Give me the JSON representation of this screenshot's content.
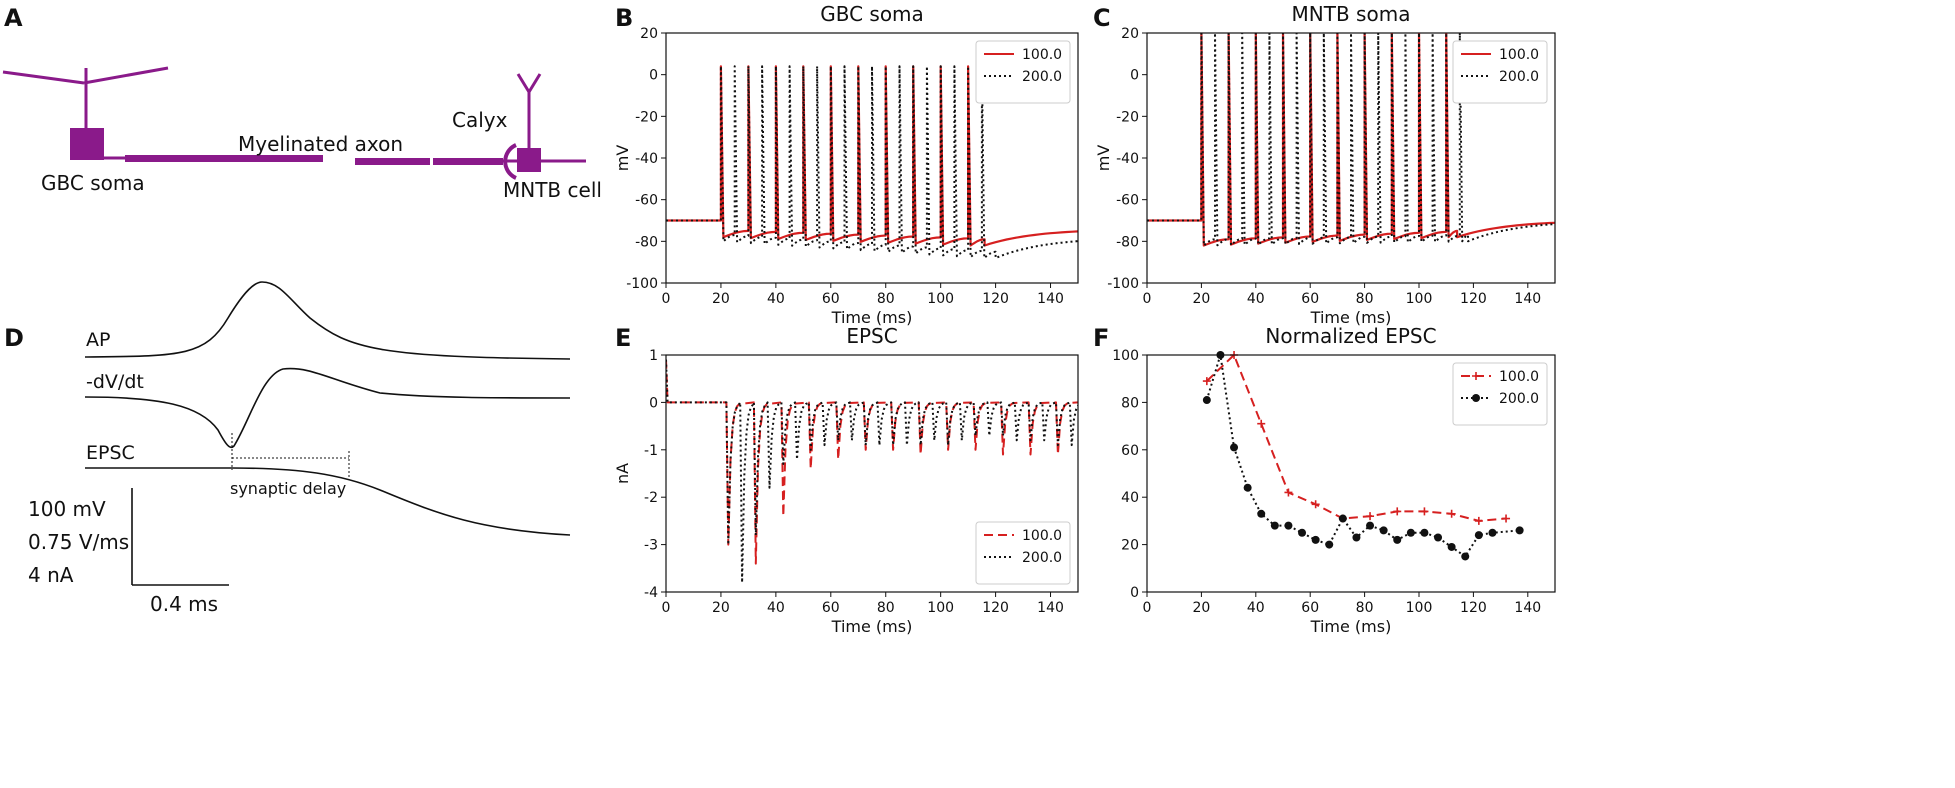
{
  "panel_labels": {
    "A": "A",
    "B": "B",
    "C": "C",
    "D": "D",
    "E": "E",
    "F": "F"
  },
  "colors": {
    "accent": "#d62020",
    "black": "#111111",
    "purple": "#8a1a8a"
  },
  "diagram": {
    "gbc_label": "GBC soma",
    "axon_label": "Myelinated axon",
    "calyx_label": "Calyx",
    "mntb_label": "MNTB cell"
  },
  "traces_panel": {
    "ap_label": "AP",
    "dvdt_label": "-dV/dt",
    "epsc_label": "EPSC",
    "delay_label": "synaptic delay",
    "scale_mv": "100 mV",
    "scale_vms": "0.75 V/ms",
    "scale_na": "4 nA",
    "scale_ms": "0.4 ms"
  },
  "chart_data": [
    {
      "id": "B",
      "type": "line",
      "title": "GBC soma",
      "xlabel": "Time (ms)",
      "ylabel": "mV",
      "xlim": [
        0,
        150
      ],
      "ylim": [
        -100,
        20
      ],
      "xticks": [
        0,
        20,
        40,
        60,
        80,
        100,
        120,
        140
      ],
      "yticks": [
        20,
        0,
        -20,
        -40,
        -60,
        -80,
        -100
      ],
      "legend": "top-right",
      "series": [
        {
          "name": "100.0",
          "style": "solid",
          "color": "#d62020",
          "rest": -70,
          "stim_start": 20,
          "stim_end": 116,
          "spikes": [
            20,
            30,
            40,
            50,
            60,
            70,
            80,
            90,
            100,
            110
          ],
          "peak": 4,
          "trough": -78,
          "after": -82,
          "recover_to": -74
        },
        {
          "name": "200.0",
          "style": "dotted",
          "color": "#111111",
          "rest": -70,
          "stim_start": 20,
          "stim_end": 120,
          "spikes": [
            20,
            25,
            30,
            35,
            40,
            45,
            50,
            55,
            60,
            65,
            70,
            75,
            80,
            85,
            90,
            95,
            100,
            105,
            110,
            115
          ],
          "peak": 4,
          "trough": -80,
          "after": -88,
          "recover_to": -78
        }
      ]
    },
    {
      "id": "C",
      "type": "line",
      "title": "MNTB soma",
      "xlabel": "Time (ms)",
      "ylabel": "mV",
      "xlim": [
        0,
        150
      ],
      "ylim": [
        -100,
        20
      ],
      "xticks": [
        0,
        20,
        40,
        60,
        80,
        100,
        120,
        140
      ],
      "yticks": [
        20,
        0,
        -20,
        -40,
        -60,
        -80,
        -100
      ],
      "legend": "top-right",
      "series": [
        {
          "name": "100.0",
          "style": "solid",
          "color": "#d62020",
          "rest": -70,
          "stim_start": 20,
          "stim_end": 114,
          "spikes": [
            20,
            30,
            40,
            50,
            60,
            70,
            80,
            90,
            100,
            110
          ],
          "peak": 21,
          "trough": -82,
          "after": -78,
          "recover_to": -70
        },
        {
          "name": "200.0",
          "style": "dotted",
          "color": "#111111",
          "rest": -70,
          "stim_start": 20,
          "stim_end": 118,
          "spikes": [
            20,
            25,
            30,
            35,
            40,
            45,
            50,
            55,
            60,
            65,
            70,
            75,
            80,
            85,
            90,
            95,
            100,
            105,
            110,
            115
          ],
          "peak": 20,
          "trough": -82,
          "after": -80,
          "recover_to": -70
        }
      ]
    },
    {
      "id": "E",
      "type": "line",
      "title": "EPSC",
      "xlabel": "Time (ms)",
      "ylabel": "nA",
      "xlim": [
        0,
        150
      ],
      "ylim": [
        -4,
        1
      ],
      "xticks": [
        0,
        20,
        40,
        60,
        80,
        100,
        120,
        140
      ],
      "yticks": [
        1,
        0,
        -1,
        -2,
        -3,
        -4
      ],
      "legend": "bottom-right",
      "series": [
        {
          "name": "100.0",
          "style": "dashed",
          "color": "#d62020",
          "events": [
            [
              22,
              -3.0
            ],
            [
              32,
              -3.4
            ],
            [
              42,
              -2.4
            ],
            [
              52,
              -1.4
            ],
            [
              62,
              -1.2
            ],
            [
              72,
              -1.0
            ],
            [
              82,
              -1.0
            ],
            [
              92,
              -1.1
            ],
            [
              102,
              -1.0
            ],
            [
              112,
              -1.0
            ],
            [
              122,
              -1.1
            ],
            [
              132,
              -1.1
            ],
            [
              142,
              -1.1
            ]
          ]
        },
        {
          "name": "200.0",
          "style": "dotted",
          "color": "#111111",
          "events": [
            [
              22,
              -3.0
            ],
            [
              27,
              -3.8
            ],
            [
              32,
              -2.8
            ],
            [
              37,
              -1.8
            ],
            [
              42,
              -1.3
            ],
            [
              47,
              -1.2
            ],
            [
              52,
              -1.0
            ],
            [
              57,
              -0.9
            ],
            [
              62,
              -0.8
            ],
            [
              67,
              -0.8
            ],
            [
              72,
              -0.9
            ],
            [
              77,
              -0.9
            ],
            [
              82,
              -0.9
            ],
            [
              87,
              -0.9
            ],
            [
              92,
              -0.9
            ],
            [
              97,
              -0.8
            ],
            [
              102,
              -0.9
            ],
            [
              107,
              -0.8
            ],
            [
              112,
              -0.7
            ],
            [
              117,
              -0.7
            ],
            [
              122,
              -0.7
            ],
            [
              127,
              -0.8
            ],
            [
              132,
              -0.8
            ],
            [
              137,
              -0.8
            ],
            [
              142,
              -0.9
            ],
            [
              147,
              -0.9
            ]
          ]
        }
      ]
    },
    {
      "id": "F",
      "type": "line",
      "title": "Normalized EPSC",
      "xlabel": "Time (ms)",
      "ylabel": "",
      "xlim": [
        0,
        150
      ],
      "ylim": [
        0,
        100
      ],
      "xticks": [
        0,
        20,
        40,
        60,
        80,
        100,
        120,
        140
      ],
      "yticks": [
        100,
        80,
        60,
        40,
        20,
        0
      ],
      "legend": "top-right",
      "series": [
        {
          "name": "100.0",
          "style": "dashed",
          "marker": "plus",
          "color": "#d62020",
          "x": [
            22,
            32,
            42,
            52,
            62,
            72,
            82,
            92,
            102,
            112,
            122,
            132
          ],
          "y": [
            89,
            100,
            71,
            42,
            37,
            31,
            32,
            34,
            34,
            33,
            30,
            31
          ]
        },
        {
          "name": "200.0",
          "style": "dotted",
          "marker": "circle",
          "color": "#111111",
          "x": [
            22,
            27,
            32,
            37,
            42,
            47,
            52,
            57,
            62,
            67,
            72,
            77,
            82,
            87,
            92,
            97,
            102,
            107,
            112,
            117,
            122,
            127,
            137
          ],
          "y": [
            81,
            100,
            61,
            44,
            33,
            28,
            28,
            25,
            22,
            20,
            31,
            23,
            28,
            26,
            22,
            25,
            25,
            23,
            19,
            15,
            24,
            25,
            26
          ]
        }
      ]
    }
  ]
}
